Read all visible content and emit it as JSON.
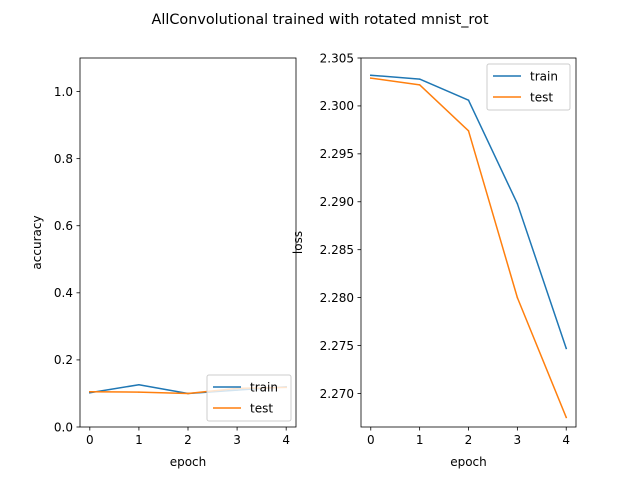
{
  "suptitle": "AllConvolutional trained with rotated mnist_rot",
  "colors": {
    "train": "#1f77b4",
    "test": "#ff7f0e"
  },
  "chart_data": [
    {
      "type": "line",
      "title": "",
      "xlabel": "epoch",
      "ylabel": "accuracy",
      "x": [
        0,
        1,
        2,
        3,
        4
      ],
      "xlim": [
        -0.2,
        4.2
      ],
      "ylim": [
        0.0,
        1.1
      ],
      "xticks": [
        "0",
        "1",
        "2",
        "3",
        "4"
      ],
      "yticks": [
        "0.0",
        "0.2",
        "0.4",
        "0.6",
        "0.8",
        "1.0"
      ],
      "grid": false,
      "legend": "lower right",
      "series": [
        {
          "name": "train",
          "values": [
            0.102,
            0.126,
            0.1,
            0.11,
            0.12
          ]
        },
        {
          "name": "test",
          "values": [
            0.105,
            0.104,
            0.1,
            0.115,
            0.118
          ]
        }
      ]
    },
    {
      "type": "line",
      "title": "",
      "xlabel": "epoch",
      "ylabel": "loss",
      "x": [
        0,
        1,
        2,
        3,
        4
      ],
      "xlim": [
        -0.2,
        4.2
      ],
      "ylim": [
        2.2665,
        2.305
      ],
      "xticks": [
        "0",
        "1",
        "2",
        "3",
        "4"
      ],
      "yticks": [
        "2.270",
        "2.275",
        "2.280",
        "2.285",
        "2.290",
        "2.295",
        "2.300",
        "2.305"
      ],
      "grid": false,
      "legend": "upper right",
      "series": [
        {
          "name": "train",
          "values": [
            2.3032,
            2.3028,
            2.3006,
            2.2898,
            2.2747
          ]
        },
        {
          "name": "test",
          "values": [
            2.3029,
            2.3022,
            2.2974,
            2.28,
            2.2675
          ]
        }
      ]
    }
  ]
}
